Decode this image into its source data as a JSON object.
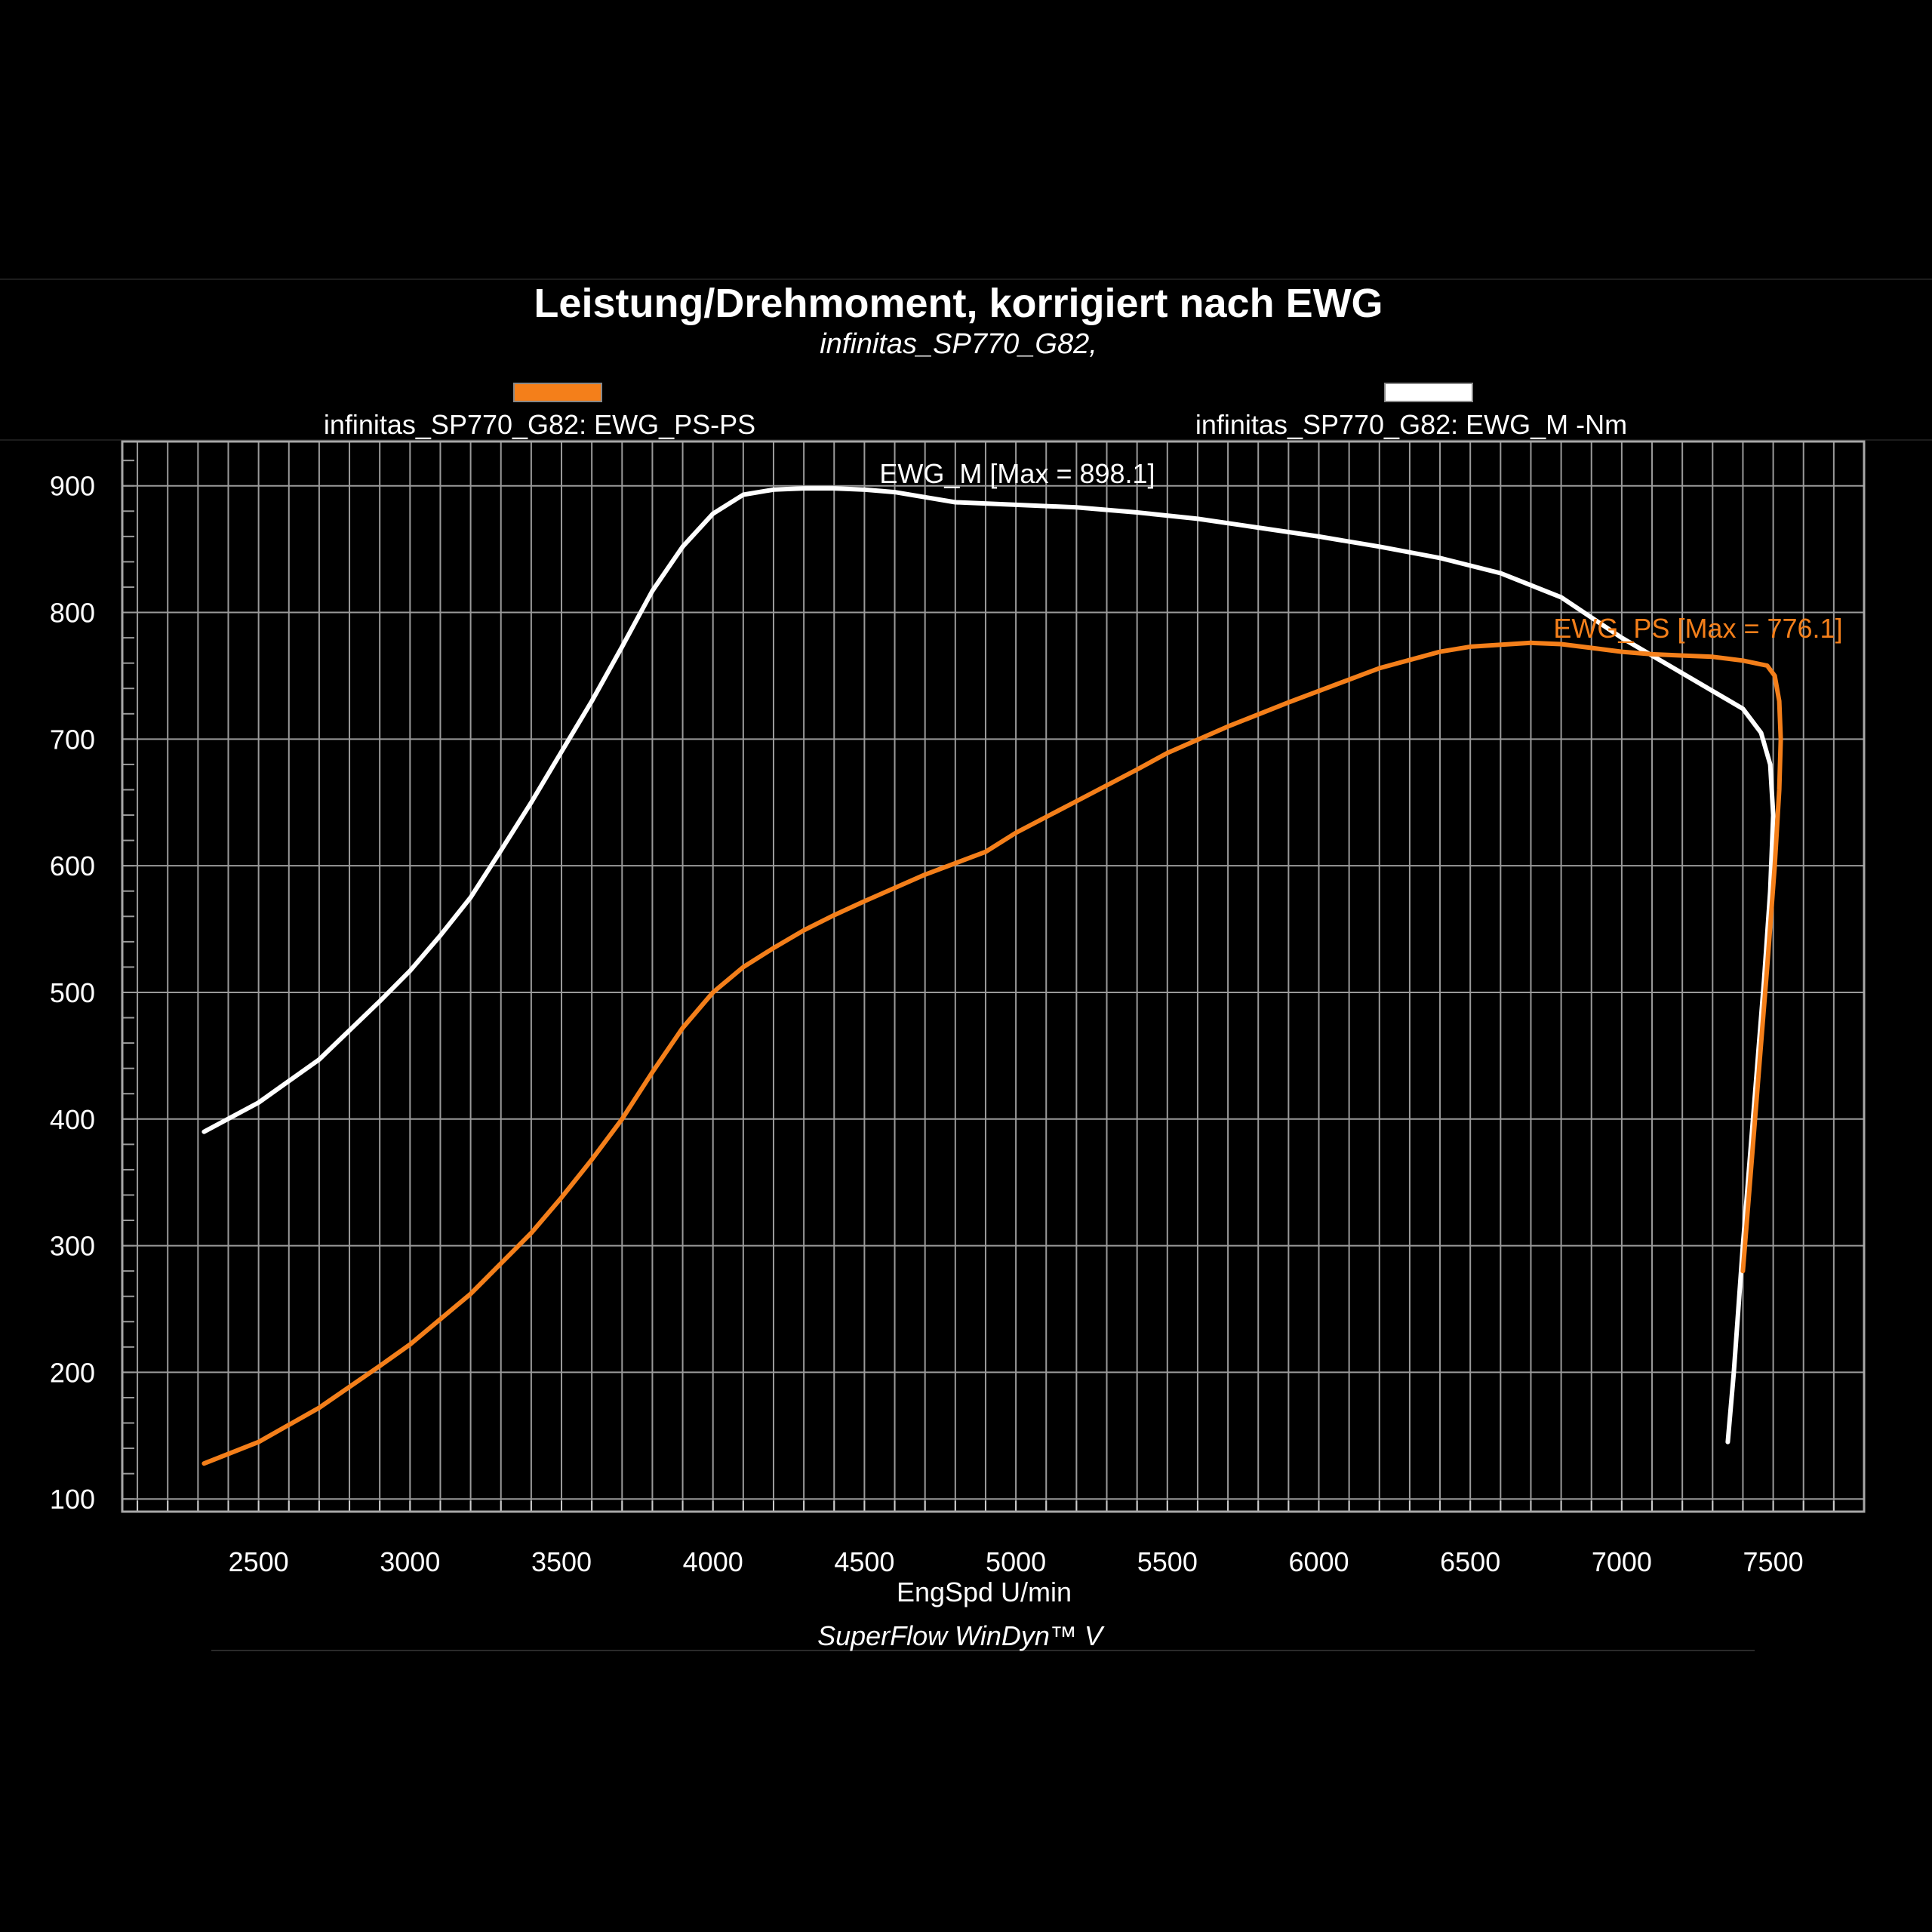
{
  "colors": {
    "background": "#000000",
    "grid": "#9a9a9a",
    "ps_series": "#f47f1a",
    "nm_series": "#ffffff"
  },
  "chart_data": {
    "type": "line",
    "title": "Leistung/Drehmoment, korrigiert nach EWG",
    "subtitle": "infinitas_SP770_G82,",
    "xlabel": "EngSpd U/min",
    "footer": "SuperFlow WinDyn™ V",
    "xlim": [
      2050,
      7800
    ],
    "ylim": [
      90,
      935
    ],
    "x_ticks": [
      2500,
      3000,
      3500,
      4000,
      4500,
      5000,
      5500,
      6000,
      6500,
      7000,
      7500
    ],
    "y_ticks": [
      100,
      200,
      300,
      400,
      500,
      600,
      700,
      800,
      900
    ],
    "grid": true,
    "legend_position": "top",
    "series": [
      {
        "name": "infinitas_SP770_G82: EWG_PS-PS",
        "annotation": "EWG_PS [Max = 776.1]",
        "color": "#f47f1a",
        "points": [
          [
            2320,
            128
          ],
          [
            2500,
            145
          ],
          [
            2700,
            172
          ],
          [
            2900,
            205
          ],
          [
            3000,
            222
          ],
          [
            3200,
            262
          ],
          [
            3400,
            310
          ],
          [
            3500,
            338
          ],
          [
            3600,
            368
          ],
          [
            3700,
            400
          ],
          [
            3800,
            437
          ],
          [
            3900,
            472
          ],
          [
            4000,
            500
          ],
          [
            4100,
            520
          ],
          [
            4200,
            535
          ],
          [
            4300,
            549
          ],
          [
            4400,
            561
          ],
          [
            4500,
            572
          ],
          [
            4700,
            593
          ],
          [
            4900,
            611
          ],
          [
            5000,
            626
          ],
          [
            5200,
            651
          ],
          [
            5400,
            676
          ],
          [
            5500,
            689
          ],
          [
            5700,
            710
          ],
          [
            5900,
            729
          ],
          [
            6000,
            738
          ],
          [
            6200,
            756
          ],
          [
            6400,
            769
          ],
          [
            6500,
            773
          ],
          [
            6700,
            776
          ],
          [
            6800,
            775
          ],
          [
            6900,
            772
          ],
          [
            7000,
            769
          ],
          [
            7100,
            767
          ],
          [
            7200,
            766
          ],
          [
            7300,
            765
          ],
          [
            7400,
            762
          ],
          [
            7480,
            758
          ],
          [
            7505,
            750
          ],
          [
            7520,
            730
          ],
          [
            7525,
            700
          ],
          [
            7520,
            660
          ],
          [
            7505,
            600
          ],
          [
            7480,
            520
          ],
          [
            7440,
            400
          ],
          [
            7400,
            280
          ]
        ]
      },
      {
        "name": "infinitas_SP770_G82: EWG_M -Nm",
        "annotation": "EWG_M  [Max = 898.1]",
        "color": "#ffffff",
        "points": [
          [
            2320,
            390
          ],
          [
            2500,
            413
          ],
          [
            2700,
            447
          ],
          [
            2900,
            493
          ],
          [
            3000,
            517
          ],
          [
            3100,
            545
          ],
          [
            3200,
            575
          ],
          [
            3300,
            612
          ],
          [
            3400,
            650
          ],
          [
            3500,
            690
          ],
          [
            3600,
            730
          ],
          [
            3700,
            773
          ],
          [
            3800,
            817
          ],
          [
            3900,
            852
          ],
          [
            4000,
            878
          ],
          [
            4100,
            893
          ],
          [
            4200,
            897
          ],
          [
            4300,
            898
          ],
          [
            4400,
            898
          ],
          [
            4500,
            897
          ],
          [
            4600,
            895
          ],
          [
            4700,
            891
          ],
          [
            4800,
            887
          ],
          [
            5000,
            885
          ],
          [
            5200,
            883
          ],
          [
            5400,
            879
          ],
          [
            5600,
            874
          ],
          [
            5800,
            867
          ],
          [
            6000,
            860
          ],
          [
            6200,
            852
          ],
          [
            6400,
            843
          ],
          [
            6600,
            831
          ],
          [
            6800,
            812
          ],
          [
            7000,
            780
          ],
          [
            7100,
            766
          ],
          [
            7200,
            752
          ],
          [
            7300,
            738
          ],
          [
            7400,
            724
          ],
          [
            7460,
            705
          ],
          [
            7490,
            680
          ],
          [
            7500,
            640
          ],
          [
            7490,
            580
          ],
          [
            7470,
            510
          ],
          [
            7440,
            420
          ],
          [
            7400,
            300
          ],
          [
            7370,
            200
          ],
          [
            7350,
            145
          ]
        ]
      }
    ]
  }
}
